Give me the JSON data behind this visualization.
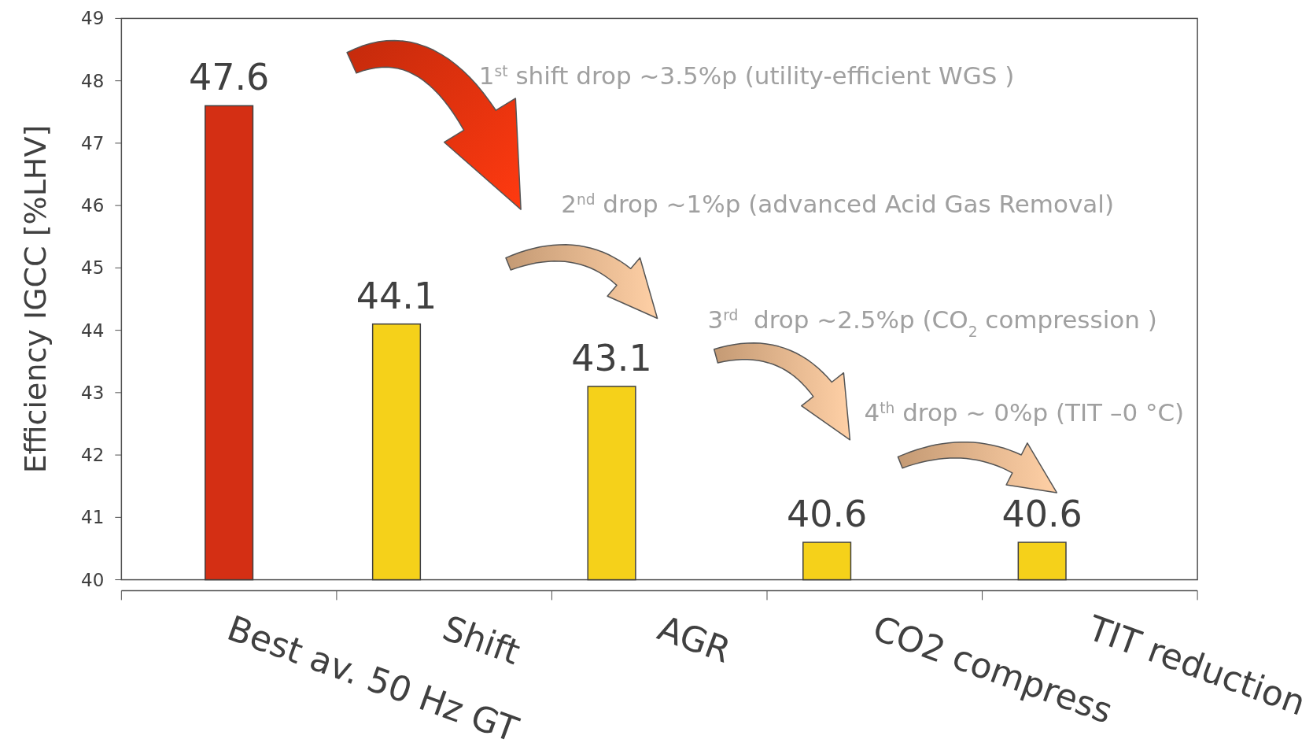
{
  "chart_data": {
    "type": "bar",
    "ylabel": "Efficiency IGCC [%LHV]",
    "categories": [
      "Best av. 50 Hz GT",
      "Shift",
      "AGR",
      "CO2 compress",
      "TIT reduction"
    ],
    "series": [
      {
        "color": "#f5d11a",
        "values": [
          40,
          44.1,
          43.1,
          40.6,
          40.6
        ],
        "value_labels": [
          null,
          "44.1",
          "43.1",
          "40.6",
          "40.6"
        ]
      },
      {
        "color": "#d42f14",
        "values": [
          47.6,
          null,
          null,
          null,
          null
        ],
        "value_labels": [
          "47.6",
          null,
          null,
          null,
          null
        ]
      }
    ],
    "ylim": [
      40,
      49
    ],
    "yticks": [
      40,
      41,
      42,
      43,
      44,
      45,
      46,
      47,
      48,
      49
    ],
    "annotations": [
      "1$^{st}$ shift drop ~3.5%p (utility-efficient WGS )",
      "2$^{nd}$ drop ~1%p (advanced Acid Gas Removal)",
      "3$^{rd}$  drop ~2.5%p (CO$_{2}$ compression )",
      "4$^{th}$ drop ~ 0%p (TIT –0 °C)"
    ]
  }
}
